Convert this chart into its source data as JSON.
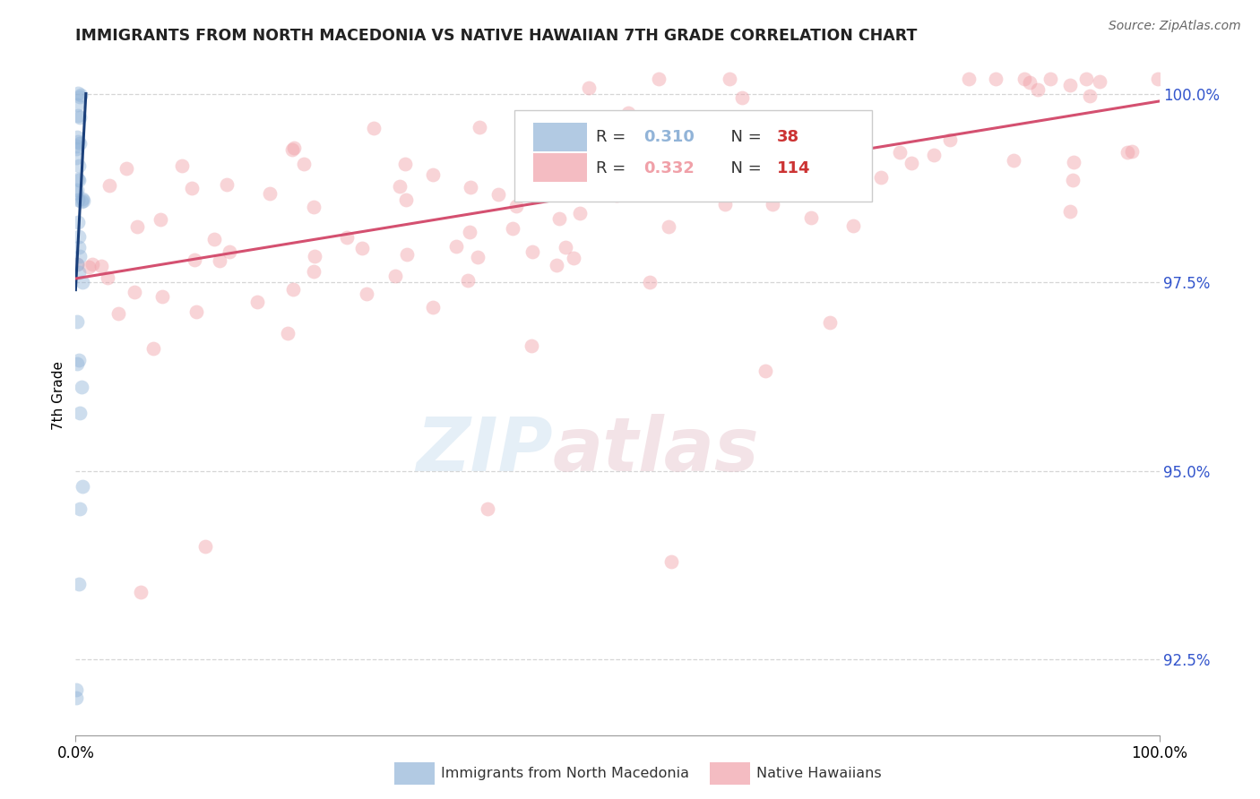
{
  "title": "IMMIGRANTS FROM NORTH MACEDONIA VS NATIVE HAWAIIAN 7TH GRADE CORRELATION CHART",
  "source": "Source: ZipAtlas.com",
  "ylabel": "7th Grade",
  "watermark_zip": "ZIP",
  "watermark_atlas": "atlas",
  "xlim": [
    0.0,
    1.0
  ],
  "ylim": [
    0.915,
    1.005
  ],
  "yticks": [
    0.925,
    0.95,
    0.975,
    1.0
  ],
  "ytick_labels": [
    "92.5%",
    "95.0%",
    "97.5%",
    "100.0%"
  ],
  "xtick_labels": [
    "0.0%",
    "100.0%"
  ],
  "scatter_size": 130,
  "scatter_alpha": 0.45,
  "blue_color": "#92b4d8",
  "pink_color": "#f0a0a8",
  "blue_line_color": "#1a3f7a",
  "pink_line_color": "#d45070",
  "title_fontsize": 12.5,
  "axis_label_fontsize": 11,
  "tick_fontsize": 12,
  "ytick_color": "#3355cc",
  "background_color": "#ffffff",
  "grid_color": "#bbbbbb",
  "grid_linestyle": "--",
  "grid_alpha": 0.6,
  "R_blue": "0.310",
  "N_blue": "38",
  "R_pink": "0.332",
  "N_pink": "114",
  "legend_label_blue": "Immigrants from North Macedonia",
  "legend_label_pink": "Native Hawaiians"
}
